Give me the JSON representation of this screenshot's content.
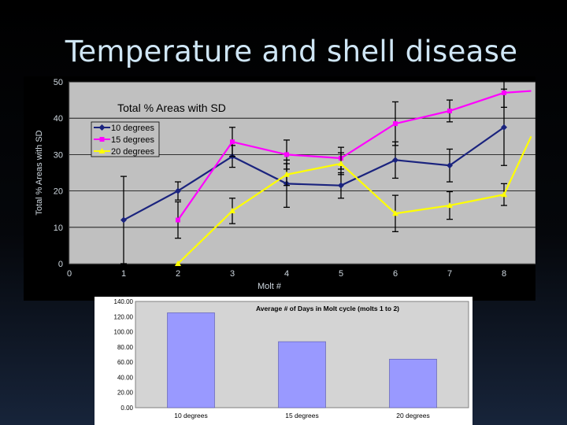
{
  "slide": {
    "title": "Temperature and shell disease"
  },
  "colors": {
    "background": "#000000",
    "title_text": "#cfe6f5",
    "upper_plot_area": "#c0c0c0",
    "series_10": "#1a237e",
    "series_15": "#ff00ff",
    "series_20": "#ffff00",
    "bar_fill": "#9999ff"
  },
  "chart_data": [
    {
      "type": "line",
      "title": "Total % Areas with SD",
      "xlabel": "Molt #",
      "ylabel": "Total % Areas with SD",
      "xlim": [
        0,
        8
      ],
      "ylim": [
        0,
        50
      ],
      "x_ticks": [
        "0",
        "1",
        "2",
        "3",
        "4",
        "5",
        "6",
        "7",
        "8"
      ],
      "y_ticks": [
        "0",
        "10",
        "20",
        "30",
        "40",
        "50"
      ],
      "grid": "horizontal",
      "legend_position": "top-left",
      "series": [
        {
          "name": "10 degrees",
          "color": "#1a237e",
          "marker": "diamond",
          "x": [
            1,
            2,
            3,
            4,
            5,
            6,
            7,
            8
          ],
          "y": [
            12,
            20,
            29.5,
            22,
            21.5,
            28.5,
            27,
            37.5
          ],
          "err": [
            12,
            2.5,
            3,
            6.5,
            3.5,
            5,
            4.5,
            10.5
          ]
        },
        {
          "name": "15 degrees",
          "color": "#ff00ff",
          "marker": "square",
          "x": [
            2,
            3,
            4,
            5,
            6,
            7,
            8,
            8.5
          ],
          "y": [
            12,
            33.5,
            30,
            29,
            38.5,
            42,
            47,
            47.5
          ],
          "err": [
            5,
            4,
            4,
            3,
            6,
            3,
            4,
            0
          ]
        },
        {
          "name": "20 degrees",
          "color": "#ffff00",
          "marker": "triangle",
          "x": [
            2,
            3,
            4,
            5,
            6,
            7,
            8,
            8.5
          ],
          "y": [
            0,
            14.5,
            24.5,
            27.5,
            13.8,
            16,
            19,
            35
          ],
          "err": [
            0,
            3.5,
            3,
            3,
            5,
            3.8,
            3,
            0
          ]
        }
      ]
    },
    {
      "type": "bar",
      "title": "Average # of Days in Molt cycle (molts 1 to 2)",
      "categories": [
        "10 degrees",
        "15 degrees",
        "20 degrees"
      ],
      "values": [
        125,
        87,
        64
      ],
      "ylim": [
        0,
        140
      ],
      "y_ticks": [
        "0.00",
        "20.00",
        "40.00",
        "60.00",
        "80.00",
        "100.00",
        "120.00",
        "140.00"
      ],
      "xlabel": "",
      "ylabel": "",
      "grid": "none"
    }
  ]
}
